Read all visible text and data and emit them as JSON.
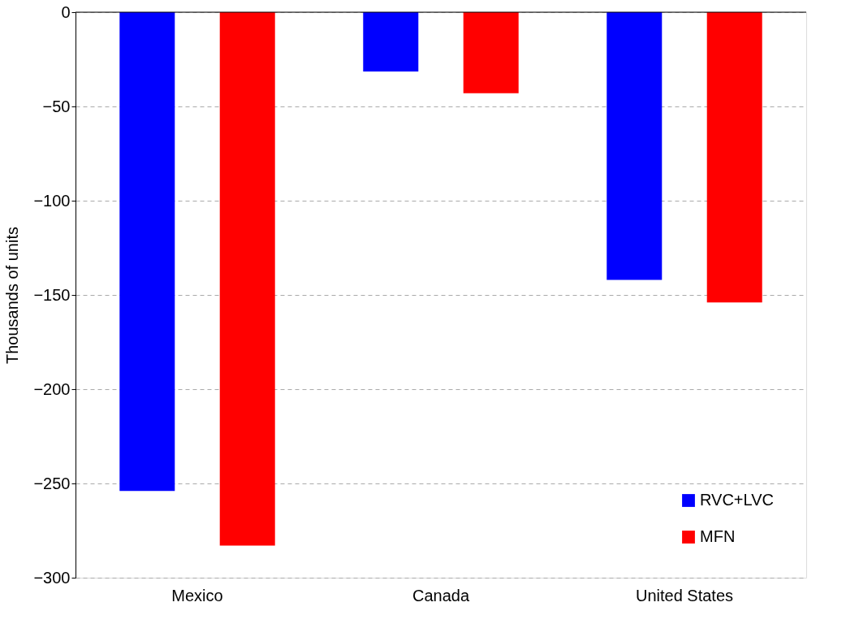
{
  "chart_data": {
    "type": "bar",
    "ylabel": "Thousands of units",
    "categories": [
      "Mexico",
      "Canada",
      "United States"
    ],
    "series": [
      {
        "name": "RVC+LVC",
        "color": "#0000ff",
        "values": [
          -254,
          -31.5,
          -142
        ]
      },
      {
        "name": "MFN",
        "color": "#ff0000",
        "values": [
          -283,
          -43,
          -154
        ]
      }
    ],
    "ylim": [
      -300,
      0
    ],
    "yticks": [
      -300,
      -250,
      -200,
      -150,
      -100,
      -50,
      0
    ],
    "grid": "y",
    "legend": "bottom right"
  }
}
